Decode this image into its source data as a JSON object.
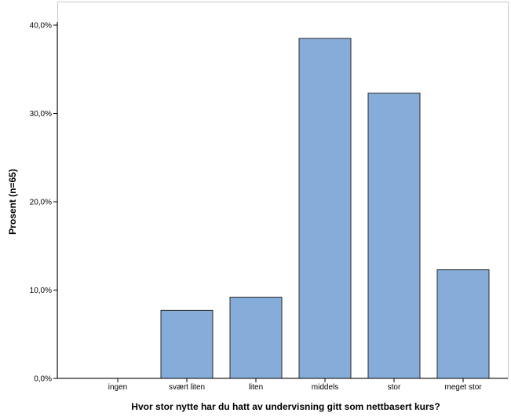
{
  "chart_data": {
    "type": "bar",
    "title": "",
    "xlabel": "Hvor stor nytte har du hatt av undervisning gitt som nettbasert kurs?",
    "ylabel": "Prosent (n=65)",
    "categories": [
      "ingen",
      "svært liten",
      "liten",
      "middels",
      "stor",
      "meget stor"
    ],
    "values": [
      0.0,
      7.7,
      9.2,
      38.5,
      32.3,
      12.3
    ],
    "ylim": [
      0,
      40
    ],
    "yticks": [
      0,
      10,
      20,
      30,
      40
    ],
    "ytick_labels": [
      "0,0%",
      "10,0%",
      "20,0%",
      "30,0%",
      "40,0%"
    ],
    "value_unit": "percent",
    "grid": false,
    "legend": "none",
    "colors": {
      "bar_fill": "#86add9",
      "bar_stroke": "#2b2b2b",
      "plot_border": "#c8c8c8",
      "axis": "#000000"
    }
  }
}
